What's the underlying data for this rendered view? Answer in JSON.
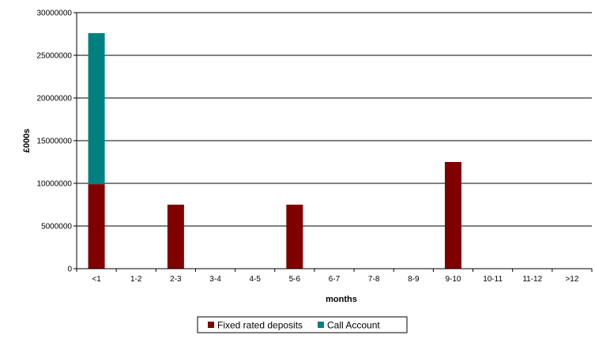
{
  "chart_data": {
    "type": "bar",
    "stacked": true,
    "title": "",
    "xlabel": "months",
    "ylabel": "£000s",
    "ylim": [
      0,
      30000000
    ],
    "yticks": [
      0,
      5000000,
      10000000,
      15000000,
      20000000,
      25000000,
      30000000
    ],
    "grid": true,
    "legend_position": "bottom",
    "categories": [
      "<1",
      "1-2",
      "2-3",
      "3-4",
      "4-5",
      "5-6",
      "6-7",
      "7-8",
      "8-9",
      "9-10",
      "10-11",
      "11-12",
      ">12"
    ],
    "series": [
      {
        "name": "Fixed rated deposits",
        "color": "#800000",
        "values": [
          9900000,
          0,
          7500000,
          0,
          0,
          7500000,
          0,
          0,
          0,
          12500000,
          0,
          0,
          0
        ]
      },
      {
        "name": "Call Account",
        "color": "#008080",
        "values": [
          17700000,
          0,
          0,
          0,
          0,
          0,
          0,
          0,
          0,
          0,
          0,
          0,
          0
        ]
      }
    ]
  }
}
